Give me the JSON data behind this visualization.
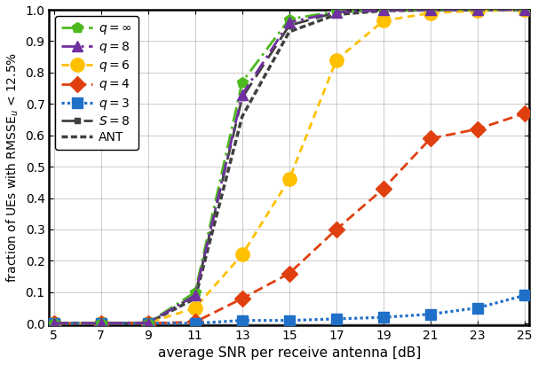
{
  "snr": [
    5,
    7,
    9,
    11,
    13,
    15,
    17,
    19,
    21,
    23,
    25
  ],
  "q_inf": [
    0.001,
    0.001,
    0.002,
    0.1,
    0.77,
    0.97,
    0.995,
    0.999,
    1.0,
    1.0,
    1.0
  ],
  "q8": [
    0.001,
    0.001,
    0.002,
    0.09,
    0.73,
    0.96,
    0.993,
    0.999,
    1.0,
    1.0,
    1.0
  ],
  "q6": [
    0.001,
    0.001,
    0.002,
    0.05,
    0.22,
    0.46,
    0.84,
    0.965,
    0.99,
    0.997,
    0.999
  ],
  "q4": [
    0.001,
    0.001,
    0.001,
    0.005,
    0.08,
    0.16,
    0.3,
    0.43,
    0.59,
    0.62,
    0.67
  ],
  "q3": [
    0.001,
    0.001,
    0.001,
    0.001,
    0.01,
    0.01,
    0.015,
    0.02,
    0.03,
    0.05,
    0.09
  ],
  "S8": [
    0.001,
    0.001,
    0.002,
    0.09,
    0.72,
    0.95,
    0.992,
    0.999,
    1.0,
    1.0,
    1.0
  ],
  "ANT": [
    0.001,
    0.001,
    0.002,
    0.08,
    0.66,
    0.93,
    0.985,
    0.997,
    0.999,
    1.0,
    1.0
  ],
  "color_q_inf": "#4cb91e",
  "color_q8": "#7030a0",
  "color_q6": "#ffc000",
  "color_q4": "#e04010",
  "color_q3": "#2070c8",
  "color_S8": "#404040",
  "color_ANT": "#404040",
  "xlabel": "average SNR per receive antenna [dB]",
  "ylabel": "fraction of UEs with RMSSE$_u$ < 12.5%",
  "ylim": [
    0,
    1
  ],
  "xlim": [
    5,
    25
  ],
  "xticks": [
    5,
    7,
    9,
    11,
    13,
    15,
    17,
    19,
    21,
    23,
    25
  ],
  "yticks": [
    0.0,
    0.1,
    0.2,
    0.3,
    0.4,
    0.5,
    0.6,
    0.7,
    0.8,
    0.9,
    1.0
  ]
}
